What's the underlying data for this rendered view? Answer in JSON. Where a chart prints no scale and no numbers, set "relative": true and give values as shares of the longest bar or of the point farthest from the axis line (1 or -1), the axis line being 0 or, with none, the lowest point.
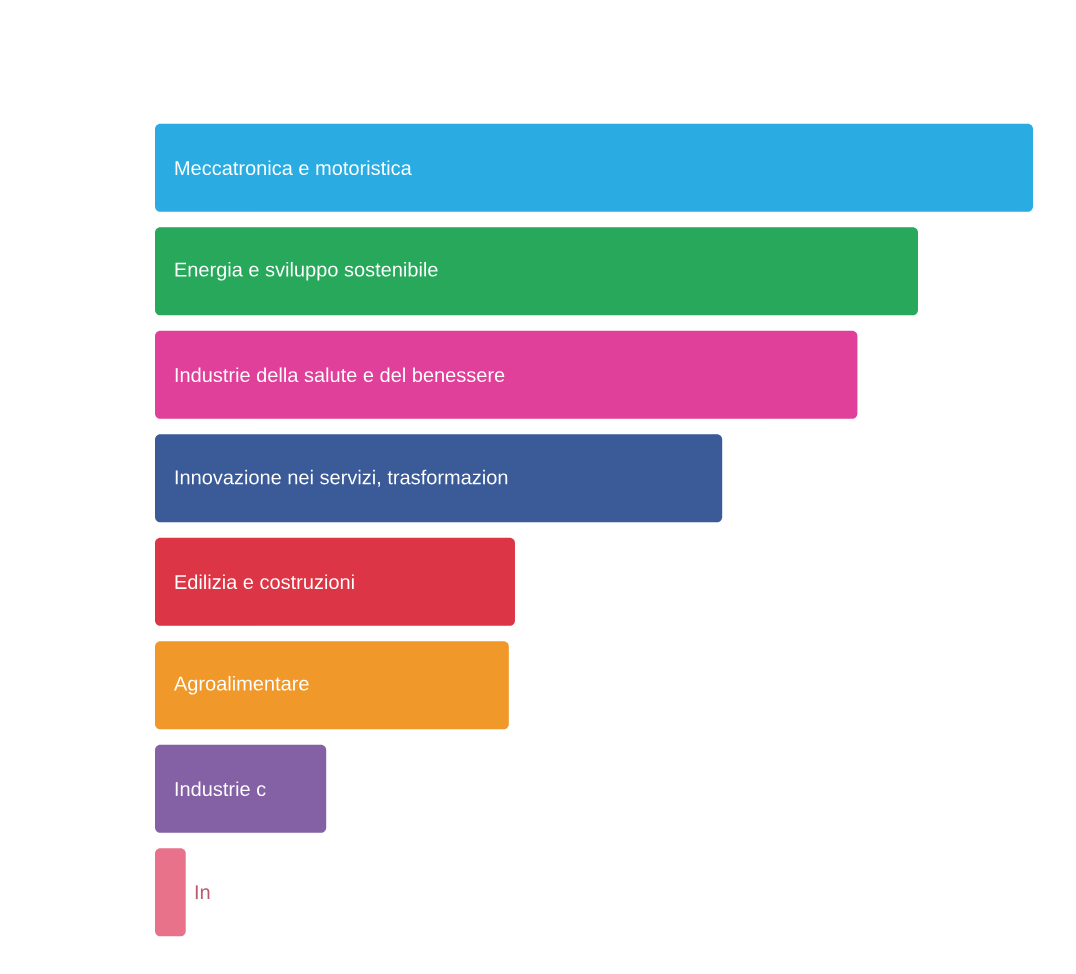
{
  "chart_data": {
    "type": "bar",
    "orientation": "horizontal",
    "relative": true,
    "categories": [
      "Meccatronica e motoristica",
      "Energia e sviluppo sostenibile",
      "Industrie della salute e del benessere",
      "Innovazione nei servizi, trasformazion",
      "Edilizia e costruzioni",
      "Agroalimentare",
      "Industrie c",
      "In"
    ],
    "values": [
      1,
      0.869,
      0.8,
      0.646,
      0.41,
      0.403,
      0.195,
      0.035
    ],
    "colors": [
      "#2aace2",
      "#27a85b",
      "#e0409a",
      "#3a5a98",
      "#dc3545",
      "#f0982a",
      "#8460a5",
      "#e8728a"
    ]
  }
}
